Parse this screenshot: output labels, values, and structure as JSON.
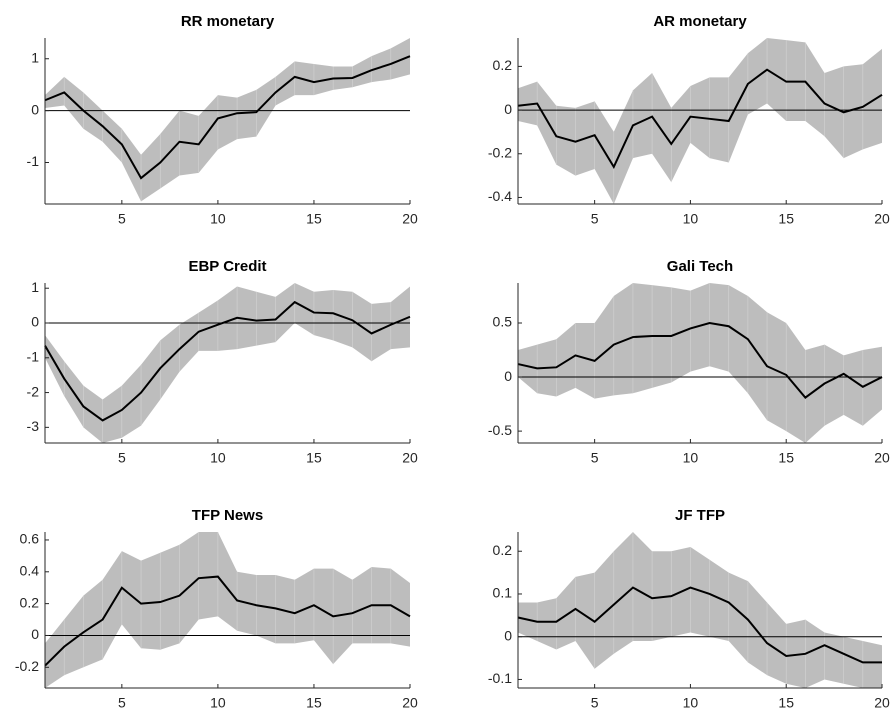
{
  "chart_data": [
    {
      "type": "line",
      "title": "RR monetary",
      "x": [
        1,
        2,
        3,
        4,
        5,
        6,
        7,
        8,
        9,
        10,
        11,
        12,
        13,
        14,
        15,
        16,
        17,
        18,
        19,
        20
      ],
      "xlim": [
        1,
        20
      ],
      "xticks": [
        5,
        10,
        15,
        20
      ],
      "ylim": [
        -1.8,
        1.4
      ],
      "yticks": [
        -1,
        0,
        1
      ],
      "reference_line": 0,
      "color": "#000000",
      "band_color": "#bdbdbd",
      "values": [
        0.2,
        0.35,
        0.0,
        -0.3,
        -0.65,
        -1.3,
        -1.0,
        -0.6,
        -0.65,
        -0.15,
        -0.05,
        -0.03,
        0.35,
        0.65,
        0.55,
        0.62,
        0.63,
        0.78,
        0.9,
        1.05
      ],
      "lower": [
        0.05,
        0.1,
        -0.35,
        -0.6,
        -1.0,
        -1.75,
        -1.5,
        -1.25,
        -1.2,
        -0.75,
        -0.55,
        -0.5,
        0.1,
        0.3,
        0.3,
        0.4,
        0.45,
        0.55,
        0.6,
        0.7
      ],
      "upper": [
        0.3,
        0.65,
        0.35,
        0.0,
        -0.35,
        -0.85,
        -0.45,
        0.0,
        -0.1,
        0.3,
        0.25,
        0.4,
        0.65,
        0.95,
        0.9,
        0.85,
        0.85,
        1.05,
        1.2,
        1.4
      ]
    },
    {
      "type": "line",
      "title": "AR monetary",
      "x": [
        1,
        2,
        3,
        4,
        5,
        6,
        7,
        8,
        9,
        10,
        11,
        12,
        13,
        14,
        15,
        16,
        17,
        18,
        19,
        20
      ],
      "xlim": [
        1,
        20
      ],
      "xticks": [
        5,
        10,
        15,
        20
      ],
      "ylim": [
        -0.43,
        0.33
      ],
      "yticks": [
        -0.4,
        -0.2,
        0,
        0.2
      ],
      "reference_line": 0,
      "color": "#000000",
      "band_color": "#bdbdbd",
      "values": [
        0.02,
        0.03,
        -0.12,
        -0.145,
        -0.115,
        -0.26,
        -0.07,
        -0.03,
        -0.155,
        -0.03,
        -0.04,
        -0.05,
        0.12,
        0.185,
        0.13,
        0.13,
        0.03,
        -0.01,
        0.015,
        0.07
      ],
      "lower": [
        -0.05,
        -0.07,
        -0.25,
        -0.3,
        -0.27,
        -0.43,
        -0.22,
        -0.2,
        -0.33,
        -0.15,
        -0.22,
        -0.24,
        -0.02,
        0.03,
        -0.05,
        -0.05,
        -0.12,
        -0.22,
        -0.18,
        -0.15
      ],
      "upper": [
        0.1,
        0.13,
        0.02,
        0.01,
        0.04,
        -0.1,
        0.09,
        0.17,
        0.01,
        0.11,
        0.15,
        0.15,
        0.26,
        0.33,
        0.32,
        0.31,
        0.17,
        0.2,
        0.21,
        0.28
      ]
    },
    {
      "type": "line",
      "title": "EBP Credit",
      "x": [
        1,
        2,
        3,
        4,
        5,
        6,
        7,
        8,
        9,
        10,
        11,
        12,
        13,
        14,
        15,
        16,
        17,
        18,
        19,
        20
      ],
      "xlim": [
        1,
        20
      ],
      "xticks": [
        5,
        10,
        15,
        20
      ],
      "ylim": [
        -3.45,
        1.15
      ],
      "yticks": [
        -3,
        -2,
        -1,
        0,
        1
      ],
      "reference_line": 0,
      "color": "#000000",
      "band_color": "#bdbdbd",
      "values": [
        -0.65,
        -1.6,
        -2.4,
        -2.8,
        -2.5,
        -2.0,
        -1.3,
        -0.75,
        -0.25,
        -0.05,
        0.15,
        0.07,
        0.1,
        0.6,
        0.3,
        0.28,
        0.08,
        -0.3,
        -0.05,
        0.18
      ],
      "lower": [
        -1.0,
        -2.1,
        -3.0,
        -3.45,
        -3.3,
        -2.95,
        -2.2,
        -1.4,
        -0.8,
        -0.8,
        -0.75,
        -0.65,
        -0.55,
        0.0,
        -0.35,
        -0.5,
        -0.7,
        -1.1,
        -0.75,
        -0.7
      ],
      "upper": [
        -0.35,
        -1.1,
        -1.8,
        -2.2,
        -1.8,
        -1.2,
        -0.5,
        -0.05,
        0.3,
        0.65,
        1.05,
        0.9,
        0.75,
        1.15,
        0.9,
        0.95,
        0.9,
        0.55,
        0.6,
        1.05
      ]
    },
    {
      "type": "line",
      "title": "Gali Tech",
      "x": [
        1,
        2,
        3,
        4,
        5,
        6,
        7,
        8,
        9,
        10,
        11,
        12,
        13,
        14,
        15,
        16,
        17,
        18,
        19,
        20
      ],
      "xlim": [
        1,
        20
      ],
      "xticks": [
        5,
        10,
        15,
        20
      ],
      "ylim": [
        -0.61,
        0.87
      ],
      "yticks": [
        -0.5,
        0,
        0.5
      ],
      "reference_line": 0,
      "color": "#000000",
      "band_color": "#bdbdbd",
      "values": [
        0.12,
        0.08,
        0.09,
        0.2,
        0.15,
        0.3,
        0.37,
        0.38,
        0.38,
        0.45,
        0.5,
        0.47,
        0.35,
        0.1,
        0.02,
        -0.19,
        -0.06,
        0.03,
        -0.09,
        0.0
      ],
      "lower": [
        0.0,
        -0.15,
        -0.18,
        -0.1,
        -0.2,
        -0.17,
        -0.15,
        -0.1,
        -0.05,
        0.05,
        0.1,
        0.05,
        -0.15,
        -0.4,
        -0.5,
        -0.61,
        -0.45,
        -0.35,
        -0.45,
        -0.3
      ],
      "upper": [
        0.25,
        0.3,
        0.35,
        0.5,
        0.5,
        0.75,
        0.87,
        0.85,
        0.83,
        0.8,
        0.87,
        0.85,
        0.75,
        0.6,
        0.5,
        0.25,
        0.3,
        0.2,
        0.25,
        0.28
      ]
    },
    {
      "type": "line",
      "title": "TFP News",
      "x": [
        1,
        2,
        3,
        4,
        5,
        6,
        7,
        8,
        9,
        10,
        11,
        12,
        13,
        14,
        15,
        16,
        17,
        18,
        19,
        20
      ],
      "xlim": [
        1,
        20
      ],
      "xticks": [
        5,
        10,
        15,
        20
      ],
      "ylim": [
        -0.33,
        0.65
      ],
      "yticks": [
        -0.2,
        0,
        0.2,
        0.4,
        0.6
      ],
      "reference_line": 0,
      "color": "#000000",
      "band_color": "#bdbdbd",
      "values": [
        -0.19,
        -0.07,
        0.02,
        0.1,
        0.3,
        0.2,
        0.21,
        0.25,
        0.36,
        0.37,
        0.22,
        0.19,
        0.17,
        0.14,
        0.19,
        0.12,
        0.14,
        0.19,
        0.19,
        0.12
      ],
      "lower": [
        -0.33,
        -0.25,
        -0.2,
        -0.15,
        0.07,
        -0.08,
        -0.09,
        -0.05,
        0.1,
        0.12,
        0.03,
        0.0,
        -0.05,
        -0.05,
        -0.03,
        -0.18,
        -0.05,
        -0.05,
        -0.05,
        -0.07
      ],
      "upper": [
        -0.05,
        0.1,
        0.25,
        0.35,
        0.53,
        0.47,
        0.52,
        0.57,
        0.65,
        0.65,
        0.4,
        0.38,
        0.38,
        0.35,
        0.42,
        0.42,
        0.35,
        0.43,
        0.42,
        0.33
      ]
    },
    {
      "type": "line",
      "title": "JF TFP",
      "x": [
        1,
        2,
        3,
        4,
        5,
        6,
        7,
        8,
        9,
        10,
        11,
        12,
        13,
        14,
        15,
        16,
        17,
        18,
        19,
        20
      ],
      "xlim": [
        1,
        20
      ],
      "xticks": [
        5,
        10,
        15,
        20
      ],
      "ylim": [
        -0.12,
        0.245
      ],
      "yticks": [
        -0.1,
        0,
        0.1,
        0.2
      ],
      "reference_line": 0,
      "color": "#000000",
      "band_color": "#bdbdbd",
      "values": [
        0.045,
        0.035,
        0.035,
        0.065,
        0.035,
        0.075,
        0.115,
        0.09,
        0.095,
        0.115,
        0.1,
        0.08,
        0.04,
        -0.015,
        -0.045,
        -0.04,
        -0.02,
        -0.04,
        -0.06,
        -0.06
      ],
      "lower": [
        0.01,
        -0.01,
        -0.03,
        -0.01,
        -0.075,
        -0.04,
        -0.01,
        -0.01,
        0.0,
        0.01,
        0.0,
        -0.01,
        -0.06,
        -0.09,
        -0.11,
        -0.12,
        -0.1,
        -0.11,
        -0.12,
        -0.12
      ],
      "upper": [
        0.08,
        0.08,
        0.09,
        0.14,
        0.15,
        0.2,
        0.245,
        0.2,
        0.2,
        0.21,
        0.18,
        0.15,
        0.13,
        0.08,
        0.03,
        0.04,
        0.01,
        0.0,
        -0.01,
        -0.02
      ]
    }
  ]
}
